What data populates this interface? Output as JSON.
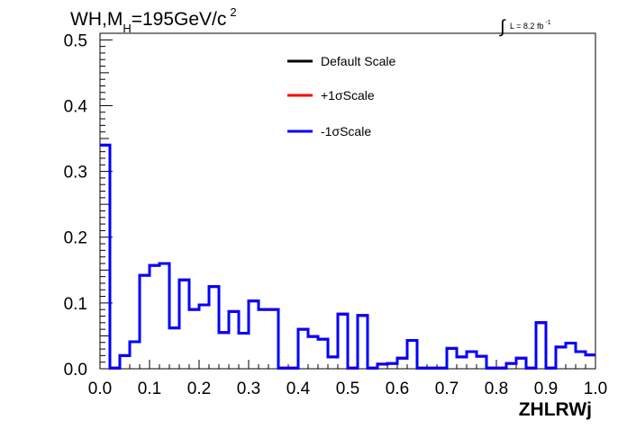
{
  "chart_data": {
    "type": "line",
    "title": {
      "base": "WH,M",
      "subscript": "H",
      "rest": "=195GeV/c",
      "superscript": "2"
    },
    "lumi": {
      "integral_symbol": "∫",
      "text": "L = 8.2 fb",
      "superscript": "-1"
    },
    "xlabel": "ZHLRWj",
    "ylabel": "",
    "xlim": [
      0,
      1
    ],
    "ylim": [
      0,
      0.51
    ],
    "x_ticks": [
      "0.0",
      "0.1",
      "0.2",
      "0.3",
      "0.4",
      "0.5",
      "0.6",
      "0.7",
      "0.8",
      "0.9",
      "1.0"
    ],
    "y_ticks": [
      "0.0",
      "0.1",
      "0.2",
      "0.3",
      "0.4",
      "0.5"
    ],
    "grid": false,
    "legend_position": "top-center",
    "bin_edges": [
      0.0,
      0.02,
      0.04,
      0.06,
      0.08,
      0.1,
      0.12,
      0.14,
      0.16,
      0.18,
      0.2,
      0.22,
      0.24,
      0.26,
      0.28,
      0.3,
      0.32,
      0.34,
      0.36,
      0.38,
      0.4,
      0.42,
      0.44,
      0.46,
      0.48,
      0.5,
      0.52,
      0.54,
      0.56,
      0.58,
      0.6,
      0.62,
      0.64,
      0.66,
      0.68,
      0.7,
      0.72,
      0.74,
      0.76,
      0.78,
      0.8,
      0.82,
      0.84,
      0.86,
      0.88,
      0.9,
      0.92,
      0.94,
      0.96,
      0.98,
      1.0
    ],
    "series": [
      {
        "name": "Default Scale",
        "color": "#000000",
        "values": [
          0.34,
          0.001,
          0.02,
          0.041,
          0.142,
          0.157,
          0.16,
          0.062,
          0.135,
          0.09,
          0.097,
          0.125,
          0.055,
          0.087,
          0.054,
          0.103,
          0.09,
          0.09,
          0.001,
          0.001,
          0.06,
          0.049,
          0.045,
          0.018,
          0.083,
          0.001,
          0.081,
          0.001,
          0.007,
          0.008,
          0.016,
          0.043,
          0.001,
          0.001,
          0.001,
          0.031,
          0.018,
          0.026,
          0.019,
          0.001,
          0.001,
          0.008,
          0.016,
          0.001,
          0.07,
          0.001,
          0.033,
          0.039,
          0.026,
          0.021
        ]
      },
      {
        "name": "+1σScale",
        "color": "#ff0000",
        "values": [
          0.34,
          0.001,
          0.02,
          0.041,
          0.142,
          0.157,
          0.16,
          0.062,
          0.135,
          0.09,
          0.097,
          0.125,
          0.055,
          0.087,
          0.054,
          0.103,
          0.09,
          0.09,
          0.001,
          0.001,
          0.06,
          0.049,
          0.045,
          0.018,
          0.083,
          0.001,
          0.081,
          0.001,
          0.007,
          0.008,
          0.016,
          0.043,
          0.001,
          0.001,
          0.001,
          0.031,
          0.018,
          0.026,
          0.019,
          0.001,
          0.001,
          0.008,
          0.016,
          0.001,
          0.07,
          0.001,
          0.033,
          0.039,
          0.026,
          0.021
        ]
      },
      {
        "name": "-1σScale",
        "color": "#0000ff",
        "values": [
          0.34,
          0.001,
          0.02,
          0.041,
          0.142,
          0.157,
          0.16,
          0.062,
          0.135,
          0.09,
          0.097,
          0.125,
          0.055,
          0.087,
          0.054,
          0.103,
          0.09,
          0.09,
          0.001,
          0.001,
          0.06,
          0.049,
          0.045,
          0.018,
          0.083,
          0.001,
          0.081,
          0.001,
          0.007,
          0.008,
          0.016,
          0.043,
          0.001,
          0.001,
          0.001,
          0.031,
          0.018,
          0.026,
          0.019,
          0.001,
          0.001,
          0.008,
          0.016,
          0.001,
          0.07,
          0.001,
          0.033,
          0.039,
          0.026,
          0.021
        ]
      }
    ]
  }
}
